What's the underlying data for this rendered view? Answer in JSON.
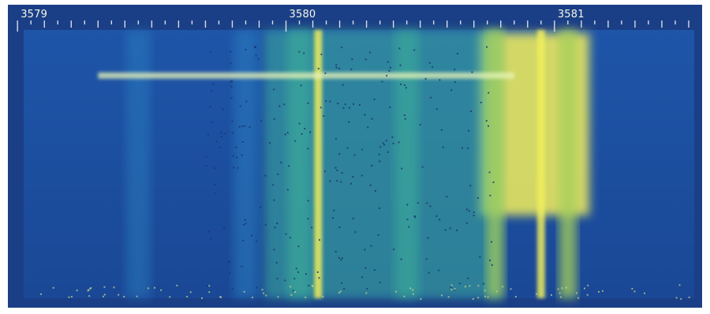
{
  "chart_data": {
    "type": "heatmap",
    "title": "",
    "xlabel": "",
    "ylabel": "",
    "x_ticks": [
      "3579",
      "3580",
      "3581"
    ],
    "x_tick_values": [
      3579,
      3580,
      3581
    ],
    "xlim": [
      3578.97,
      3581.55
    ],
    "colormap": [
      "#1c4fa3",
      "#2a7fc0",
      "#3cae9a",
      "#a6cf5a",
      "#f2ef5c"
    ],
    "vertical_bands": [
      {
        "x": 3579.45,
        "intensity": 0.25
      },
      {
        "x": 3579.85,
        "intensity": 0.35
      },
      {
        "x": 3580.05,
        "intensity": 0.55
      },
      {
        "x": 3580.12,
        "intensity": 0.95
      },
      {
        "x": 3580.45,
        "intensity": 0.45
      },
      {
        "x": 3580.78,
        "intensity": 0.75
      },
      {
        "x": 3580.95,
        "intensity": 0.95
      },
      {
        "x": 3581.05,
        "intensity": 0.85
      }
    ],
    "horizontal_line": {
      "y_fraction": 0.17,
      "intensity": 0.9
    },
    "grid": false,
    "legend": "none"
  },
  "colors": {
    "background": "#1c4fa3",
    "outer_frame": "#1b3f86",
    "tick_color": "#e8eef6",
    "highlight": "#f2ef5c"
  }
}
